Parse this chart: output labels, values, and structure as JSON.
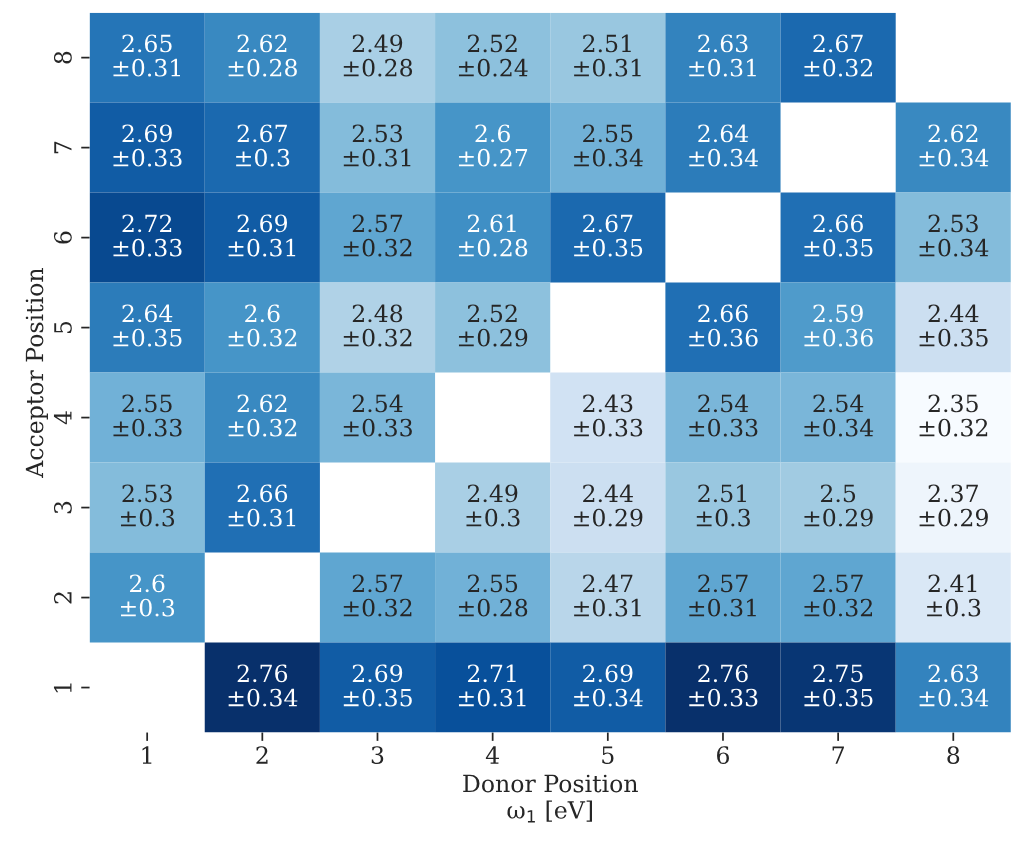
{
  "chart_data": {
    "type": "heatmap",
    "xlabel": "Donor Position\nω$_{1}$ [eV]",
    "ylabel": "Acceptor Position",
    "data_labels": true,
    "categories": [
      "1",
      "2",
      "3",
      "4",
      "5",
      "6",
      "7",
      "8"
    ],
    "y_categories": [
      "8",
      "7",
      "6",
      "5",
      "4",
      "3",
      "2",
      "1"
    ],
    "cells": [
      [
        2.65,
        2.62,
        2.49,
        2.52,
        2.51,
        2.63,
        2.67,
        null
      ],
      [
        2.69,
        2.67,
        2.53,
        2.6,
        2.55,
        2.64,
        null,
        2.62
      ],
      [
        2.72,
        2.69,
        2.57,
        2.61,
        2.67,
        null,
        2.66,
        2.53
      ],
      [
        2.64,
        2.6,
        2.48,
        2.52,
        null,
        2.66,
        2.59,
        2.44
      ],
      [
        2.55,
        2.62,
        2.54,
        null,
        2.43,
        2.54,
        2.54,
        2.35
      ],
      [
        2.53,
        2.66,
        null,
        2.49,
        2.44,
        2.51,
        2.5,
        2.37
      ],
      [
        2.6,
        null,
        2.57,
        2.55,
        2.47,
        2.57,
        2.57,
        2.41
      ],
      [
        null,
        2.76,
        2.69,
        2.71,
        2.69,
        2.76,
        2.75,
        2.63
      ]
    ],
    "annotations": [
      "±0.31",
      "±0.28",
      "±0.28",
      "±0.24",
      "±0.31",
      "±0.31",
      "±0.32",
      "±0.33",
      "±0.3",
      "±0.31",
      "±0.27",
      "±0.34",
      "±0.34",
      "±0.34",
      "±0.33",
      "±0.31",
      "±0.32",
      "±0.28",
      "±0.35",
      "±0.35",
      "±0.34",
      "±0.35",
      "±0.32",
      "±0.32",
      "±0.29",
      "±0.36",
      "±0.36",
      "±0.35",
      "±0.33",
      "±0.32",
      "±0.33",
      "±0.33",
      "±0.33",
      "±0.34",
      "±0.32",
      "±0.3",
      "±0.31",
      "±0.3",
      "±0.29",
      "±0.3",
      "±0.29",
      "±0.29",
      "±0.3",
      "±0.32",
      "±0.28",
      "±0.31",
      "±0.31",
      "±0.32",
      "±0.3",
      "±0.34",
      "±0.35",
      "±0.31",
      "±0.34",
      "±0.33",
      "±0.35",
      "±0.34"
    ]
  }
}
